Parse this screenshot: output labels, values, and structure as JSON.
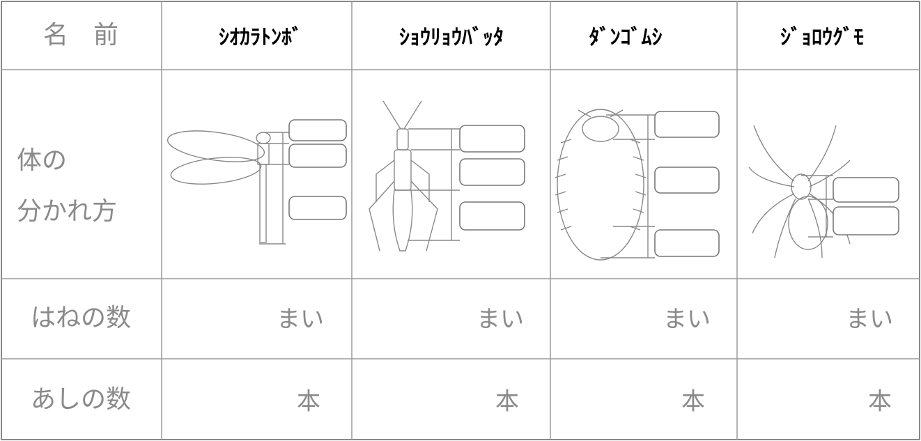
{
  "header": {
    "label": "名　前",
    "names": [
      "ｼｵｶﾗﾄﾝﾎﾞ",
      "ｼｮｳﾘｮｳﾊﾞｯﾀ",
      "ﾀﾞﾝｺﾞﾑｼ",
      "ｼﾞｮﾛｳｸﾞﾓ"
    ]
  },
  "body_division": {
    "label": [
      "体の",
      "分かれ方"
    ]
  },
  "wings": {
    "label": "はねの数",
    "cells": [
      "まい",
      "まい",
      "まい",
      "まい"
    ]
  },
  "legs": {
    "label": "あしの数",
    "cells": [
      "本",
      "本",
      "本",
      "本"
    ]
  }
}
